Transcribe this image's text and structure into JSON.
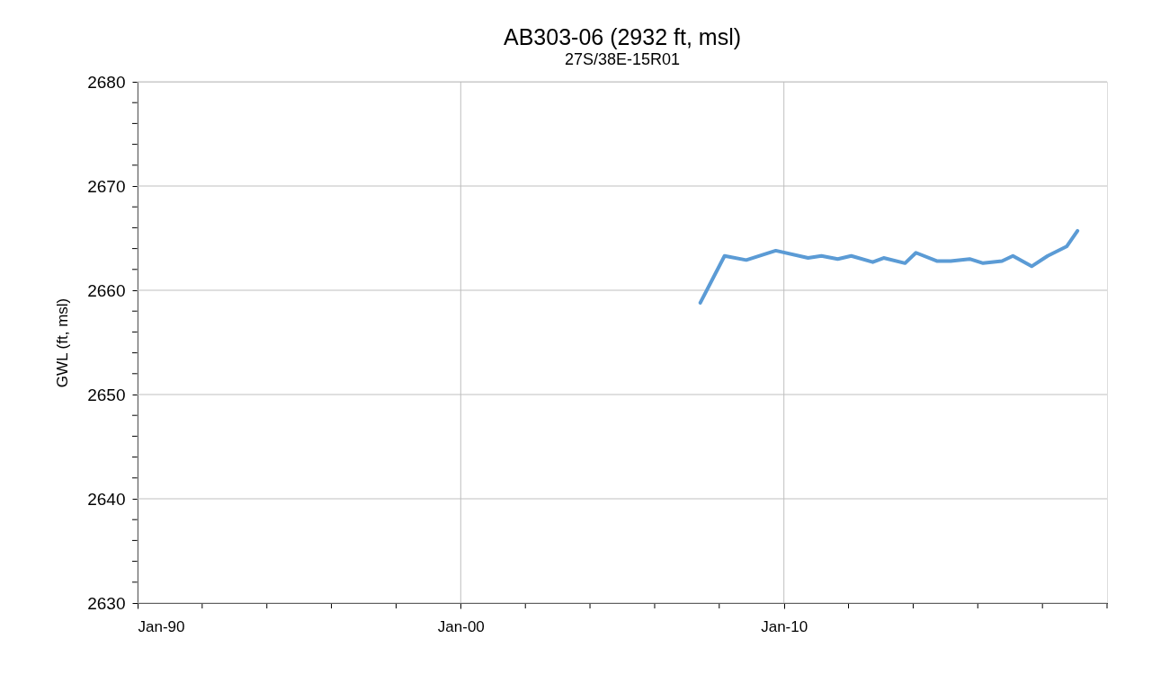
{
  "chart_data": {
    "type": "line",
    "title": "AB303-06 (2932 ft, msl)",
    "subtitle": "27S/38E-15R01",
    "ylabel": "GWL (ft, msl)",
    "x": [
      "2007-06",
      "2008-03",
      "2008-11",
      "2009-10",
      "2010-10",
      "2011-03",
      "2011-09",
      "2012-02",
      "2012-10",
      "2013-02",
      "2013-10",
      "2014-02",
      "2014-10",
      "2015-03",
      "2015-10",
      "2016-03",
      "2016-10",
      "2017-02",
      "2017-09",
      "2018-03",
      "2018-10",
      "2019-02"
    ],
    "series": [
      {
        "color": "#5b9bd5",
        "values": [
          2658.8,
          2663.3,
          2662.9,
          2663.8,
          2663.1,
          2663.3,
          2663.0,
          2663.3,
          2662.7,
          2663.1,
          2662.6,
          2663.6,
          2662.8,
          2662.8,
          2663.0,
          2662.6,
          2662.8,
          2663.3,
          2662.3,
          2663.3,
          2664.2,
          2665.7
        ]
      }
    ],
    "xlim": [
      "1990-01",
      "2020-01"
    ],
    "xticks": [
      {
        "value": "1990-01",
        "label": "Jan-90"
      },
      {
        "value": "1992-01",
        "label": null
      },
      {
        "value": "1994-01",
        "label": null
      },
      {
        "value": "1996-01",
        "label": null
      },
      {
        "value": "1998-01",
        "label": null
      },
      {
        "value": "2000-01",
        "label": "Jan-00"
      },
      {
        "value": "2002-01",
        "label": null
      },
      {
        "value": "2004-01",
        "label": null
      },
      {
        "value": "2006-01",
        "label": null
      },
      {
        "value": "2008-01",
        "label": null
      },
      {
        "value": "2010-01",
        "label": "Jan-10"
      },
      {
        "value": "2012-01",
        "label": null
      },
      {
        "value": "2014-01",
        "label": null
      },
      {
        "value": "2016-01",
        "label": null
      },
      {
        "value": "2018-01",
        "label": null
      },
      {
        "value": "2020-01",
        "label": null
      }
    ],
    "ylim": [
      2630,
      2680
    ],
    "yticks": [
      2630,
      {
        "value": 2632,
        "label": null
      },
      {
        "value": 2634,
        "label": null
      },
      {
        "value": 2636,
        "label": null
      },
      {
        "value": 2638,
        "label": null
      },
      2640,
      {
        "value": 2642,
        "label": null
      },
      {
        "value": 2644,
        "label": null
      },
      {
        "value": 2646,
        "label": null
      },
      {
        "value": 2648,
        "label": null
      },
      2650,
      {
        "value": 2652,
        "label": null
      },
      {
        "value": 2654,
        "label": null
      },
      {
        "value": 2656,
        "label": null
      },
      {
        "value": 2658,
        "label": null
      },
      2660,
      {
        "value": 2662,
        "label": null
      },
      {
        "value": 2664,
        "label": null
      },
      {
        "value": 2666,
        "label": null
      },
      {
        "value": 2668,
        "label": null
      },
      2670,
      {
        "value": 2672,
        "label": null
      },
      {
        "value": 2674,
        "label": null
      },
      {
        "value": 2676,
        "label": null
      },
      {
        "value": 2678,
        "label": null
      },
      2680
    ],
    "grid": true,
    "marker": "none",
    "line_style": "solid",
    "legend": false
  }
}
